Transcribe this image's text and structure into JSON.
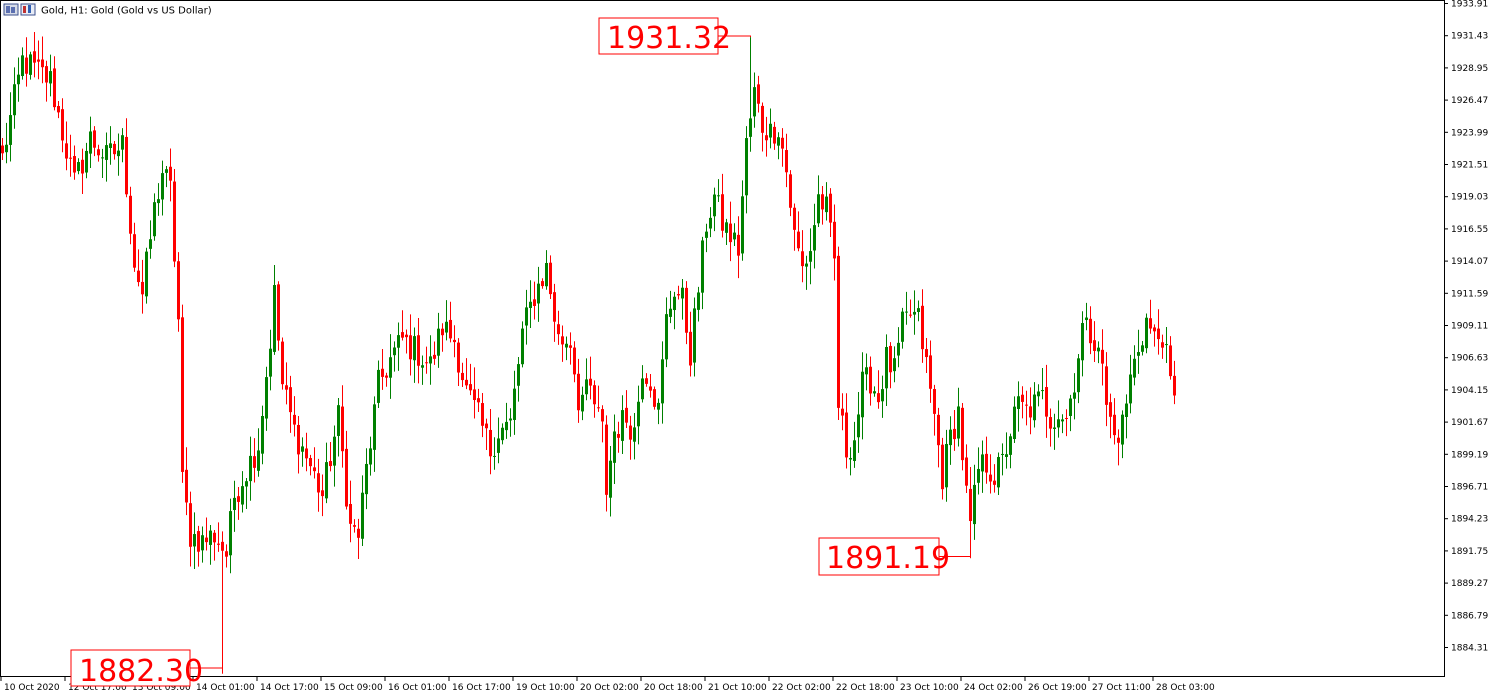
{
  "header": {
    "symbol": "Gold",
    "timeframe": "H1",
    "description": "Gold (Gold vs US Dollar)",
    "title": "Gold, H1:  Gold (Gold vs US Dollar)"
  },
  "colors": {
    "background": "#ffffff",
    "frame": "#000000",
    "bull": "#008000",
    "bear": "#ff0000",
    "annotation": "#ff0000",
    "text": "#000000"
  },
  "icons": [
    "chart-window-icon",
    "instrument-icon"
  ],
  "chart_data": {
    "type": "candlestick",
    "title": "Gold, H1:  Gold (Gold vs US Dollar)",
    "xlabel": "",
    "ylabel": "",
    "ylim": [
      1881.8,
      1934.7
    ],
    "grid": false,
    "legend": "none",
    "y_ticks": [
      "1933.91",
      "1931.43",
      "1928.95",
      "1926.47",
      "1923.99",
      "1921.51",
      "1919.03",
      "1916.55",
      "1914.07",
      "1911.59",
      "1909.11",
      "1906.63",
      "1904.15",
      "1901.67",
      "1899.19",
      "1896.71",
      "1894.23",
      "1891.75",
      "1889.27",
      "1886.79",
      "1884.31"
    ],
    "x_ticks": [
      "10 Oct 2020",
      "12 Oct 17:00",
      "13 Oct 09:00",
      "14 Oct 01:00",
      "14 Oct 17:00",
      "15 Oct 09:00",
      "16 Oct 01:00",
      "16 Oct 17:00",
      "19 Oct 10:00",
      "20 Oct 02:00",
      "20 Oct 18:00",
      "21 Oct 10:00",
      "22 Oct 02:00",
      "22 Oct 18:00",
      "23 Oct 10:00",
      "24 Oct 02:00",
      "26 Oct 19:00",
      "27 Oct 11:00",
      "28 Oct 03:00"
    ],
    "annotations": [
      {
        "label": "1931.32",
        "value": 1931.32,
        "candle_index": 187
      },
      {
        "label": "1891.19",
        "value": 1891.19,
        "candle_index": 242
      },
      {
        "label": "1882.30",
        "value": 1882.3,
        "candle_index": 55
      }
    ],
    "key_points": [
      {
        "i": 0,
        "price": 1922.0
      },
      {
        "i": 5,
        "price": 1929.5
      },
      {
        "i": 12,
        "price": 1928.0
      },
      {
        "i": 15,
        "price": 1924.0
      },
      {
        "i": 18,
        "price": 1920.0
      },
      {
        "i": 22,
        "price": 1923.5
      },
      {
        "i": 26,
        "price": 1922.0
      },
      {
        "i": 30,
        "price": 1923.0
      },
      {
        "i": 33,
        "price": 1914.0
      },
      {
        "i": 35,
        "price": 1911.5
      },
      {
        "i": 38,
        "price": 1918.0
      },
      {
        "i": 40,
        "price": 1921.0
      },
      {
        "i": 42,
        "price": 1919.5
      },
      {
        "i": 44,
        "price": 1909.5
      },
      {
        "i": 45,
        "price": 1897.0
      },
      {
        "i": 47,
        "price": 1893.0
      },
      {
        "i": 50,
        "price": 1892.5
      },
      {
        "i": 53,
        "price": 1893.0
      },
      {
        "i": 56,
        "price": 1891.5
      },
      {
        "i": 58,
        "price": 1896.0
      },
      {
        "i": 61,
        "price": 1898.0
      },
      {
        "i": 64,
        "price": 1900.0
      },
      {
        "i": 67,
        "price": 1908.0
      },
      {
        "i": 68,
        "price": 1911.5
      },
      {
        "i": 70,
        "price": 1904.5
      },
      {
        "i": 73,
        "price": 1901.0
      },
      {
        "i": 76,
        "price": 1899.0
      },
      {
        "i": 80,
        "price": 1896.0
      },
      {
        "i": 84,
        "price": 1902.0
      },
      {
        "i": 87,
        "price": 1893.5
      },
      {
        "i": 89,
        "price": 1893.0
      },
      {
        "i": 91,
        "price": 1898.0
      },
      {
        "i": 94,
        "price": 1904.5
      },
      {
        "i": 97,
        "price": 1906.5
      },
      {
        "i": 100,
        "price": 1908.0
      },
      {
        "i": 104,
        "price": 1907.0
      },
      {
        "i": 107,
        "price": 1906.0
      },
      {
        "i": 110,
        "price": 1909.0
      },
      {
        "i": 113,
        "price": 1908.0
      },
      {
        "i": 116,
        "price": 1904.0
      },
      {
        "i": 119,
        "price": 1902.0
      },
      {
        "i": 122,
        "price": 1899.5
      },
      {
        "i": 124,
        "price": 1901.0
      },
      {
        "i": 127,
        "price": 1901.5
      },
      {
        "i": 130,
        "price": 1908.5
      },
      {
        "i": 133,
        "price": 1911.5
      },
      {
        "i": 136,
        "price": 1913.5
      },
      {
        "i": 139,
        "price": 1908.0
      },
      {
        "i": 142,
        "price": 1908.0
      },
      {
        "i": 144,
        "price": 1903.5
      },
      {
        "i": 147,
        "price": 1904.0
      },
      {
        "i": 150,
        "price": 1901.0
      },
      {
        "i": 151,
        "price": 1896.5
      },
      {
        "i": 153,
        "price": 1901.0
      },
      {
        "i": 156,
        "price": 1902.0
      },
      {
        "i": 158,
        "price": 1901.0
      },
      {
        "i": 160,
        "price": 1906.0
      },
      {
        "i": 162,
        "price": 1905.0
      },
      {
        "i": 164,
        "price": 1902.5
      },
      {
        "i": 166,
        "price": 1909.5
      },
      {
        "i": 168,
        "price": 1912.0
      },
      {
        "i": 170,
        "price": 1911.0
      },
      {
        "i": 172,
        "price": 1907.0
      },
      {
        "i": 174,
        "price": 1912.0
      },
      {
        "i": 176,
        "price": 1917.0
      },
      {
        "i": 178,
        "price": 1919.0
      },
      {
        "i": 180,
        "price": 1917.0
      },
      {
        "i": 182,
        "price": 1916.0
      },
      {
        "i": 184,
        "price": 1915.0
      },
      {
        "i": 186,
        "price": 1923.0
      },
      {
        "i": 188,
        "price": 1927.0
      },
      {
        "i": 190,
        "price": 1924.5
      },
      {
        "i": 192,
        "price": 1924.0
      },
      {
        "i": 194,
        "price": 1924.5
      },
      {
        "i": 196,
        "price": 1921.0
      },
      {
        "i": 198,
        "price": 1916.0
      },
      {
        "i": 200,
        "price": 1913.5
      },
      {
        "i": 202,
        "price": 1915.0
      },
      {
        "i": 204,
        "price": 1919.0
      },
      {
        "i": 206,
        "price": 1918.0
      },
      {
        "i": 208,
        "price": 1914.0
      },
      {
        "i": 209,
        "price": 1903.0
      },
      {
        "i": 211,
        "price": 1899.5
      },
      {
        "i": 213,
        "price": 1900.5
      },
      {
        "i": 215,
        "price": 1904.5
      },
      {
        "i": 217,
        "price": 1905.0
      },
      {
        "i": 219,
        "price": 1903.5
      },
      {
        "i": 221,
        "price": 1906.5
      },
      {
        "i": 223,
        "price": 1905.5
      },
      {
        "i": 225,
        "price": 1909.0
      },
      {
        "i": 227,
        "price": 1910.0
      },
      {
        "i": 229,
        "price": 1909.5
      },
      {
        "i": 231,
        "price": 1906.0
      },
      {
        "i": 233,
        "price": 1902.0
      },
      {
        "i": 235,
        "price": 1897.5
      },
      {
        "i": 237,
        "price": 1900.5
      },
      {
        "i": 239,
        "price": 1902.5
      },
      {
        "i": 241,
        "price": 1896.0
      },
      {
        "i": 242,
        "price": 1893.5
      },
      {
        "i": 244,
        "price": 1898.0
      },
      {
        "i": 246,
        "price": 1898.5
      },
      {
        "i": 248,
        "price": 1897.5
      },
      {
        "i": 250,
        "price": 1898.5
      },
      {
        "i": 252,
        "price": 1901.0
      },
      {
        "i": 254,
        "price": 1903.0
      },
      {
        "i": 256,
        "price": 1902.5
      },
      {
        "i": 258,
        "price": 1903.0
      },
      {
        "i": 260,
        "price": 1903.5
      },
      {
        "i": 262,
        "price": 1902.0
      },
      {
        "i": 264,
        "price": 1902.5
      },
      {
        "i": 266,
        "price": 1902.0
      },
      {
        "i": 268,
        "price": 1905.0
      },
      {
        "i": 270,
        "price": 1909.0
      },
      {
        "i": 272,
        "price": 1908.5
      },
      {
        "i": 274,
        "price": 1908.0
      },
      {
        "i": 276,
        "price": 1903.0
      },
      {
        "i": 278,
        "price": 1900.5
      },
      {
        "i": 280,
        "price": 1901.5
      },
      {
        "i": 282,
        "price": 1905.0
      },
      {
        "i": 284,
        "price": 1907.5
      },
      {
        "i": 286,
        "price": 1909.5
      },
      {
        "i": 288,
        "price": 1908.0
      },
      {
        "i": 290,
        "price": 1908.5
      },
      {
        "i": 292,
        "price": 1904.5
      },
      {
        "i": 293,
        "price": 1903.0
      }
    ]
  }
}
